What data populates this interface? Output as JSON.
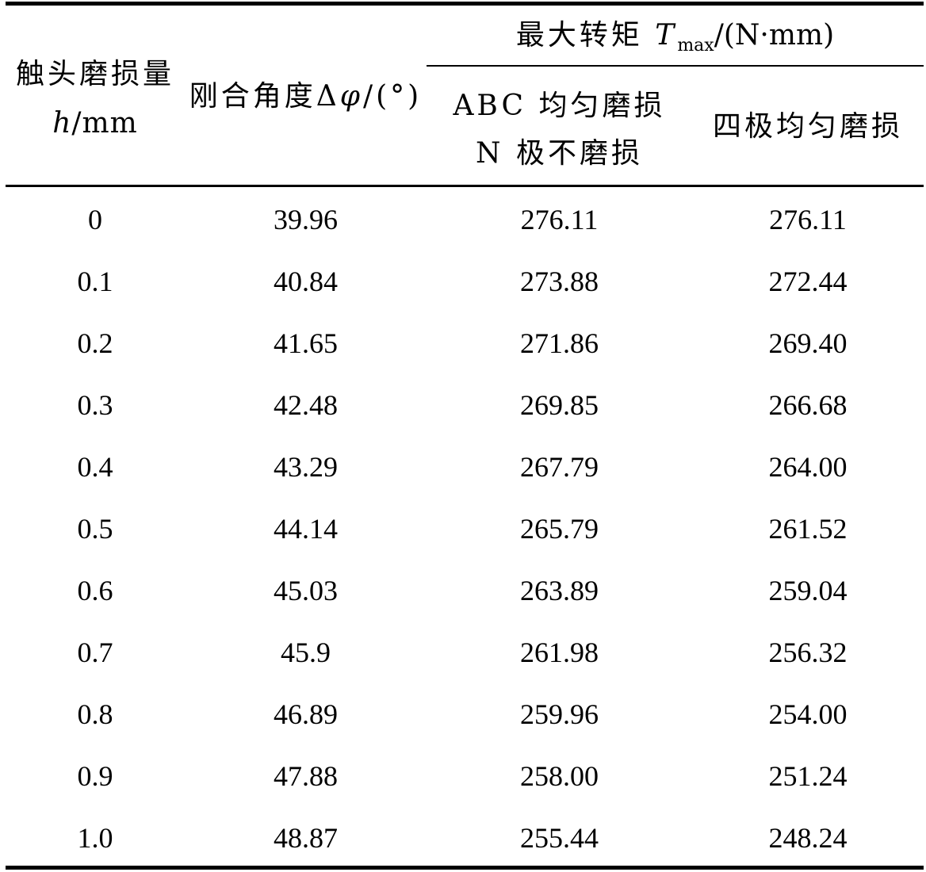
{
  "table": {
    "header": {
      "col1_line1": "触头磨损量",
      "col1_var": "h",
      "col1_unit": "/mm",
      "col2_label": "刚合角度Δ",
      "col2_var": "φ",
      "col2_unit": "/(°)",
      "group_label": "最大转矩 ",
      "group_var": "T",
      "group_sub": "max",
      "group_unit": "/(N·mm)",
      "col3_line1": "ABC 均匀磨损",
      "col3_line2": "N 极不磨损",
      "col4_label": "四极均匀磨损"
    },
    "rows": [
      [
        "0",
        "39.96",
        "276.11",
        "276.11"
      ],
      [
        "0.1",
        "40.84",
        "273.88",
        "272.44"
      ],
      [
        "0.2",
        "41.65",
        "271.86",
        "269.40"
      ],
      [
        "0.3",
        "42.48",
        "269.85",
        "266.68"
      ],
      [
        "0.4",
        "43.29",
        "267.79",
        "264.00"
      ],
      [
        "0.5",
        "44.14",
        "265.79",
        "261.52"
      ],
      [
        "0.6",
        "45.03",
        "263.89",
        "259.04"
      ],
      [
        "0.7",
        "45.9",
        "261.98",
        "256.32"
      ],
      [
        "0.8",
        "46.89",
        "259.96",
        "254.00"
      ],
      [
        "0.9",
        "47.88",
        "258.00",
        "251.24"
      ],
      [
        "1.0",
        "48.87",
        "255.44",
        "248.24"
      ]
    ]
  }
}
